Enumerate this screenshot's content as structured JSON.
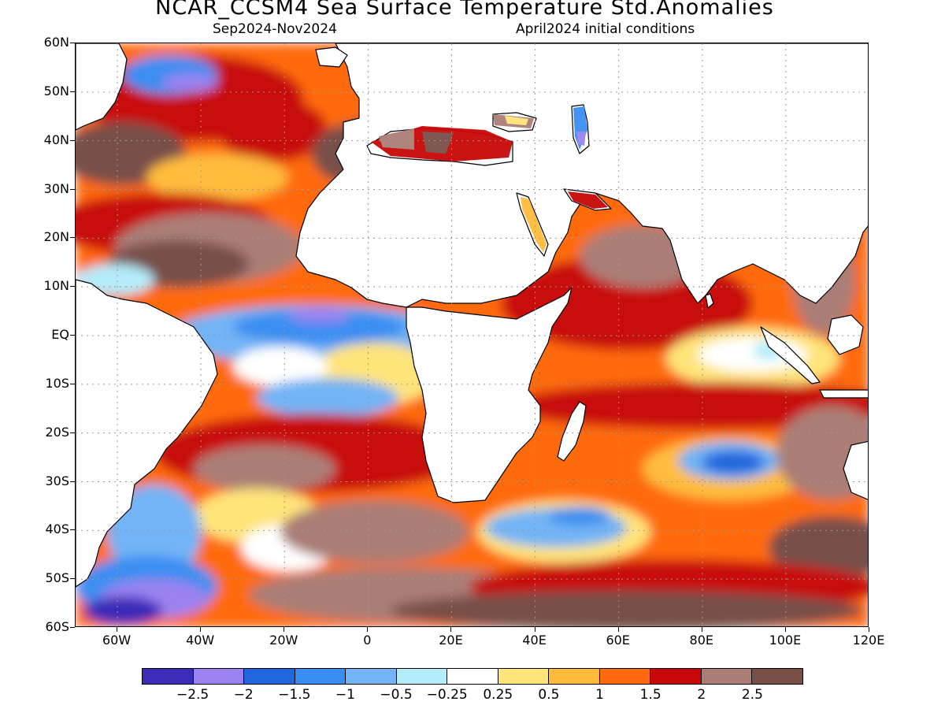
{
  "title": "NCAR_CCSM4 Sea Surface Temperature Std.Anomalies",
  "subtitle_left": "Sep2024-Nov2024",
  "subtitle_right": "April2024 initial conditions",
  "y_axis_labels": [
    "60N",
    "50N",
    "40N",
    "30N",
    "20N",
    "10N",
    "EQ",
    "10S",
    "20S",
    "30S",
    "40S",
    "50S",
    "60S"
  ],
  "x_axis_labels": [
    "60W",
    "40W",
    "20W",
    "0",
    "20E",
    "40E",
    "60E",
    "80E",
    "100E",
    "120E"
  ],
  "map_extent": {
    "lon_min": -70,
    "lon_max": 120,
    "lat_min": -60,
    "lat_max": 60
  },
  "colorbar": {
    "colors": [
      "#3a2bb8",
      "#9a82f0",
      "#2266dd",
      "#3a8ef2",
      "#72b4f5",
      "#b4ecfa",
      "#ffffff",
      "#ffe47a",
      "#ffbc3c",
      "#ff6a10",
      "#c80808",
      "#aa7e76",
      "#785048"
    ],
    "labels": [
      "−2.5",
      "−2",
      "−1.5",
      "−1",
      "−0.5",
      "−0.25",
      "0.25",
      "0.5",
      "1",
      "1.5",
      "2",
      "2.5"
    ]
  }
}
